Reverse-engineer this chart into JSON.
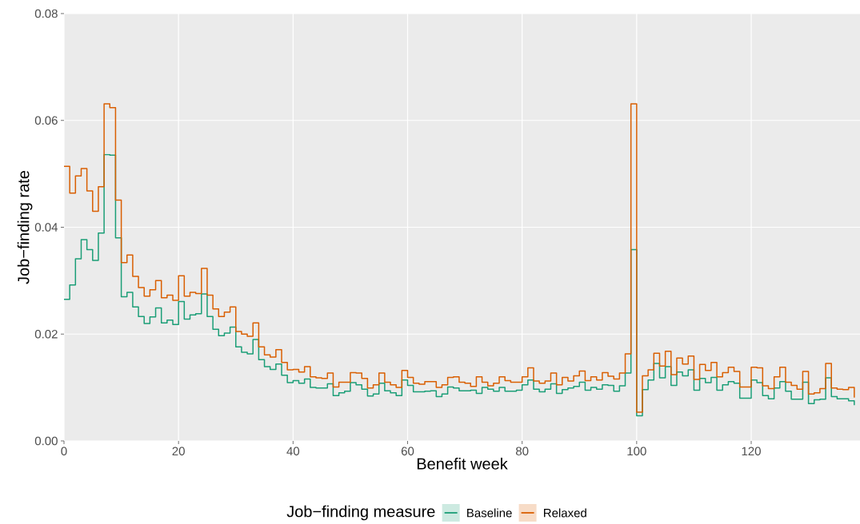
{
  "chart_data": {
    "type": "step",
    "xlabel": "Benefit week",
    "ylabel": "Job−finding rate",
    "legend_title": "Job−finding measure",
    "x": [
      0,
      1,
      2,
      3,
      4,
      5,
      6,
      7,
      8,
      9,
      10,
      11,
      12,
      13,
      14,
      15,
      16,
      17,
      18,
      19,
      20,
      21,
      22,
      23,
      24,
      25,
      26,
      27,
      28,
      29,
      30,
      31,
      32,
      33,
      34,
      35,
      36,
      37,
      38,
      39,
      40,
      41,
      42,
      43,
      44,
      45,
      46,
      47,
      48,
      49,
      50,
      51,
      52,
      53,
      54,
      55,
      56,
      57,
      58,
      59,
      60,
      61,
      62,
      63,
      64,
      65,
      66,
      67,
      68,
      69,
      70,
      71,
      72,
      73,
      74,
      75,
      76,
      77,
      78,
      79,
      80,
      81,
      82,
      83,
      84,
      85,
      86,
      87,
      88,
      89,
      90,
      91,
      92,
      93,
      94,
      95,
      96,
      97,
      98,
      99,
      100,
      101,
      102,
      103,
      104,
      105,
      106,
      107,
      108,
      109,
      110,
      111,
      112,
      113,
      114,
      115,
      116,
      117,
      118,
      119,
      120,
      121,
      122,
      123,
      124,
      125,
      126,
      127,
      128,
      129,
      130,
      131,
      132,
      133,
      134,
      135,
      136,
      137,
      138
    ],
    "series": [
      {
        "name": "Baseline",
        "color": "#1b9e77",
        "values": [
          0.0265,
          0.0292,
          0.0341,
          0.0377,
          0.0358,
          0.0338,
          0.0389,
          0.0536,
          0.0535,
          0.038,
          0.027,
          0.0278,
          0.0251,
          0.0233,
          0.022,
          0.0232,
          0.0249,
          0.0221,
          0.0226,
          0.0218,
          0.0261,
          0.0228,
          0.0236,
          0.0238,
          0.0275,
          0.0233,
          0.0209,
          0.0197,
          0.0202,
          0.0213,
          0.0176,
          0.0166,
          0.0163,
          0.019,
          0.0152,
          0.0139,
          0.0134,
          0.0144,
          0.0123,
          0.0109,
          0.0113,
          0.0108,
          0.0116,
          0.01,
          0.0099,
          0.0099,
          0.0107,
          0.0085,
          0.009,
          0.0093,
          0.0109,
          0.0105,
          0.0097,
          0.0084,
          0.0088,
          0.0108,
          0.0094,
          0.009,
          0.0085,
          0.0114,
          0.0104,
          0.0092,
          0.0092,
          0.0093,
          0.0094,
          0.0083,
          0.0088,
          0.0101,
          0.0099,
          0.0094,
          0.0094,
          0.0095,
          0.0089,
          0.01,
          0.0097,
          0.0093,
          0.01,
          0.0093,
          0.0093,
          0.0095,
          0.0105,
          0.0114,
          0.0097,
          0.0092,
          0.0097,
          0.0107,
          0.0089,
          0.0096,
          0.0099,
          0.0102,
          0.011,
          0.0095,
          0.01,
          0.0097,
          0.0105,
          0.0104,
          0.0093,
          0.0103,
          0.0127,
          0.0358,
          0.0047,
          0.0096,
          0.0114,
          0.0145,
          0.0118,
          0.0139,
          0.0104,
          0.0129,
          0.0122,
          0.0133,
          0.0095,
          0.0117,
          0.0109,
          0.0119,
          0.0095,
          0.0105,
          0.0111,
          0.0108,
          0.008,
          0.008,
          0.0114,
          0.0109,
          0.0085,
          0.0079,
          0.0099,
          0.0111,
          0.0093,
          0.0078,
          0.0078,
          0.011,
          0.007,
          0.0077,
          0.0078,
          0.0118,
          0.0083,
          0.0079,
          0.0079,
          0.0075,
          0.0067
        ]
      },
      {
        "name": "Relaxed",
        "color": "#d95f02",
        "values": [
          0.0514,
          0.0464,
          0.0496,
          0.051,
          0.0468,
          0.043,
          0.0476,
          0.0631,
          0.0624,
          0.0451,
          0.0334,
          0.0348,
          0.0308,
          0.0287,
          0.0271,
          0.0283,
          0.03,
          0.0268,
          0.0273,
          0.0263,
          0.0309,
          0.0271,
          0.0278,
          0.0276,
          0.0323,
          0.0273,
          0.0247,
          0.0233,
          0.0241,
          0.0251,
          0.0205,
          0.02,
          0.0196,
          0.0221,
          0.0176,
          0.0161,
          0.0157,
          0.0171,
          0.0147,
          0.0133,
          0.0134,
          0.0129,
          0.0139,
          0.012,
          0.0118,
          0.0117,
          0.0127,
          0.0101,
          0.011,
          0.011,
          0.0128,
          0.0127,
          0.0117,
          0.0099,
          0.0105,
          0.0127,
          0.011,
          0.0105,
          0.01,
          0.0132,
          0.0119,
          0.0108,
          0.0106,
          0.0111,
          0.0111,
          0.01,
          0.0105,
          0.0119,
          0.012,
          0.011,
          0.0108,
          0.0102,
          0.012,
          0.011,
          0.0103,
          0.0108,
          0.012,
          0.0113,
          0.011,
          0.011,
          0.012,
          0.0137,
          0.0112,
          0.0108,
          0.0112,
          0.0127,
          0.0105,
          0.0119,
          0.0112,
          0.0122,
          0.0131,
          0.0113,
          0.012,
          0.0114,
          0.0128,
          0.0121,
          0.0116,
          0.0127,
          0.0163,
          0.0631,
          0.0054,
          0.0122,
          0.0133,
          0.0164,
          0.014,
          0.0168,
          0.0124,
          0.0155,
          0.0144,
          0.0159,
          0.0115,
          0.0143,
          0.0132,
          0.0147,
          0.012,
          0.0128,
          0.0138,
          0.013,
          0.0101,
          0.0101,
          0.0138,
          0.0137,
          0.0103,
          0.0098,
          0.012,
          0.0138,
          0.011,
          0.0104,
          0.0097,
          0.013,
          0.0088,
          0.009,
          0.0098,
          0.0145,
          0.0099,
          0.0097,
          0.0096,
          0.01,
          0.0081
        ]
      }
    ],
    "xlim": [
      0,
      139
    ],
    "ylim": [
      0,
      0.08
    ],
    "xticks": [
      0,
      20,
      40,
      60,
      80,
      100,
      120
    ],
    "yticks": [
      {
        "value": 0,
        "label": "0.00"
      },
      {
        "value": 0.02,
        "label": "0.02"
      },
      {
        "value": 0.04,
        "label": "0.04"
      },
      {
        "value": 0.06,
        "label": "0.06"
      },
      {
        "value": 0.08,
        "label": "0.08"
      }
    ],
    "grid": true,
    "legend": "bottom",
    "line_style": "solid",
    "marker": "none"
  }
}
